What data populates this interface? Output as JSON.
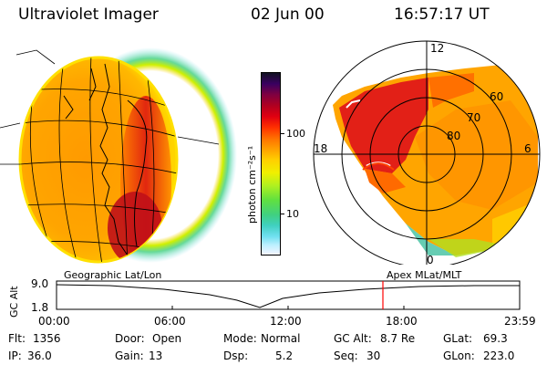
{
  "header": {
    "instrument": "Ultraviolet Imager",
    "date": "02 Jun 00",
    "time": "16:57:17 UT"
  },
  "colorbar": {
    "unit_label": "photon cm⁻²s⁻¹",
    "ticks": [
      "100",
      "10"
    ],
    "colors": [
      "#111122",
      "#3a0060",
      "#800040",
      "#b00020",
      "#e00010",
      "#ff3000",
      "#ff7000",
      "#ffa000",
      "#ffd000",
      "#f0f000",
      "#b0f020",
      "#60e040",
      "#40d080",
      "#40d0c0",
      "#70e0f0",
      "#c0f0ff",
      "#f4f4ff"
    ]
  },
  "left_panel": {
    "label": "Geographic Lat/Lon"
  },
  "right_panel": {
    "label": "Apex MLat/MLT",
    "mlt_labels": {
      "top": "12",
      "left": "18",
      "right": "6",
      "bottom": "0"
    },
    "lat_labels": [
      "60",
      "70",
      "80"
    ]
  },
  "timeline": {
    "ylabel": "GC Alt",
    "ytick_top": "9.0",
    "ytick_bottom": "1.8",
    "xticks": [
      "00:00",
      "06:00",
      "12:00",
      "18:00",
      "23:59"
    ],
    "current_marker_color": "#ff0000"
  },
  "info": {
    "row1": [
      {
        "label": "Flt:",
        "value": "1356"
      },
      {
        "label": "Door:",
        "value": "Open"
      },
      {
        "label": "Mode:",
        "value": "Normal"
      },
      {
        "label": "GC Alt:",
        "value": "8.7 Re"
      },
      {
        "label": "GLat:",
        "value": "69.3"
      }
    ],
    "row2": [
      {
        "label": "IP:",
        "value": "36.0"
      },
      {
        "label": "Gain:",
        "value": "13"
      },
      {
        "label": "Dsp:",
        "value": "5.2"
      },
      {
        "label": "Seq:",
        "value": "30"
      },
      {
        "label": "GLon:",
        "value": "223.0"
      }
    ]
  }
}
